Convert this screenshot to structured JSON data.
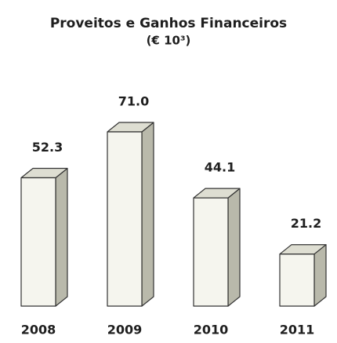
{
  "chart_data": {
    "type": "bar3d",
    "title": "Proveitos e Ganhos Financeiros",
    "subtitle": "(€ 10³)",
    "categories": [
      "2008",
      "2009",
      "2010",
      "2011"
    ],
    "values": [
      52.3,
      71,
      44.1,
      21.2
    ],
    "value_labels": [
      "52.3",
      "71.0",
      "44.1",
      "21.2"
    ],
    "color": "#f5f5ee"
  }
}
